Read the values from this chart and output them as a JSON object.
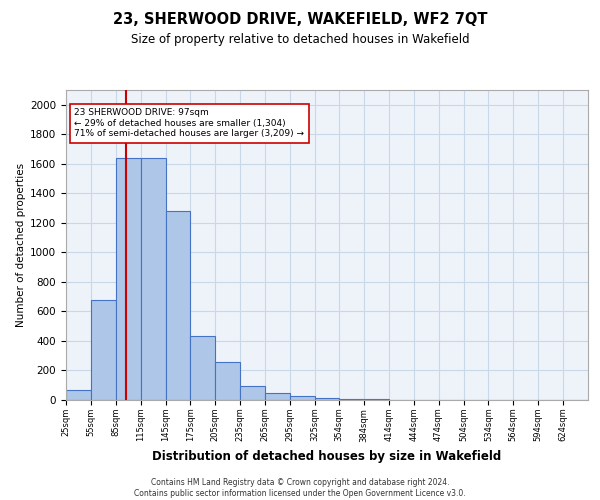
{
  "title": "23, SHERWOOD DRIVE, WAKEFIELD, WF2 7QT",
  "subtitle": "Size of property relative to detached houses in Wakefield",
  "xlabel": "Distribution of detached houses by size in Wakefield",
  "ylabel": "Number of detached properties",
  "bin_labels": [
    "25sqm",
    "55sqm",
    "85sqm",
    "115sqm",
    "145sqm",
    "175sqm",
    "205sqm",
    "235sqm",
    "265sqm",
    "295sqm",
    "325sqm",
    "354sqm",
    "384sqm",
    "414sqm",
    "444sqm",
    "474sqm",
    "504sqm",
    "534sqm",
    "564sqm",
    "594sqm",
    "624sqm"
  ],
  "bin_edges": [
    25,
    55,
    85,
    115,
    145,
    175,
    205,
    235,
    265,
    295,
    325,
    354,
    384,
    414,
    444,
    474,
    504,
    534,
    564,
    594,
    624,
    654
  ],
  "bar_heights": [
    65,
    680,
    1640,
    1640,
    1280,
    435,
    255,
    95,
    50,
    25,
    15,
    8,
    5,
    3,
    2,
    1,
    0,
    0,
    0,
    0,
    0
  ],
  "bar_color": "#aec6e8",
  "bar_edge_color": "#4472c4",
  "grid_color": "#c8d8e8",
  "bg_color": "#eef3fa",
  "property_size": 97,
  "red_line_color": "#cc0000",
  "annotation_line1": "23 SHERWOOD DRIVE: 97sqm",
  "annotation_line2": "← 29% of detached houses are smaller (1,304)",
  "annotation_line3": "71% of semi-detached houses are larger (3,209) →",
  "annotation_box_color": "#ffffff",
  "annotation_box_edge": "#cc0000",
  "footer_line1": "Contains HM Land Registry data © Crown copyright and database right 2024.",
  "footer_line2": "Contains public sector information licensed under the Open Government Licence v3.0.",
  "ylim": [
    0,
    2100
  ],
  "yticks": [
    0,
    200,
    400,
    600,
    800,
    1000,
    1200,
    1400,
    1600,
    1800,
    2000
  ]
}
